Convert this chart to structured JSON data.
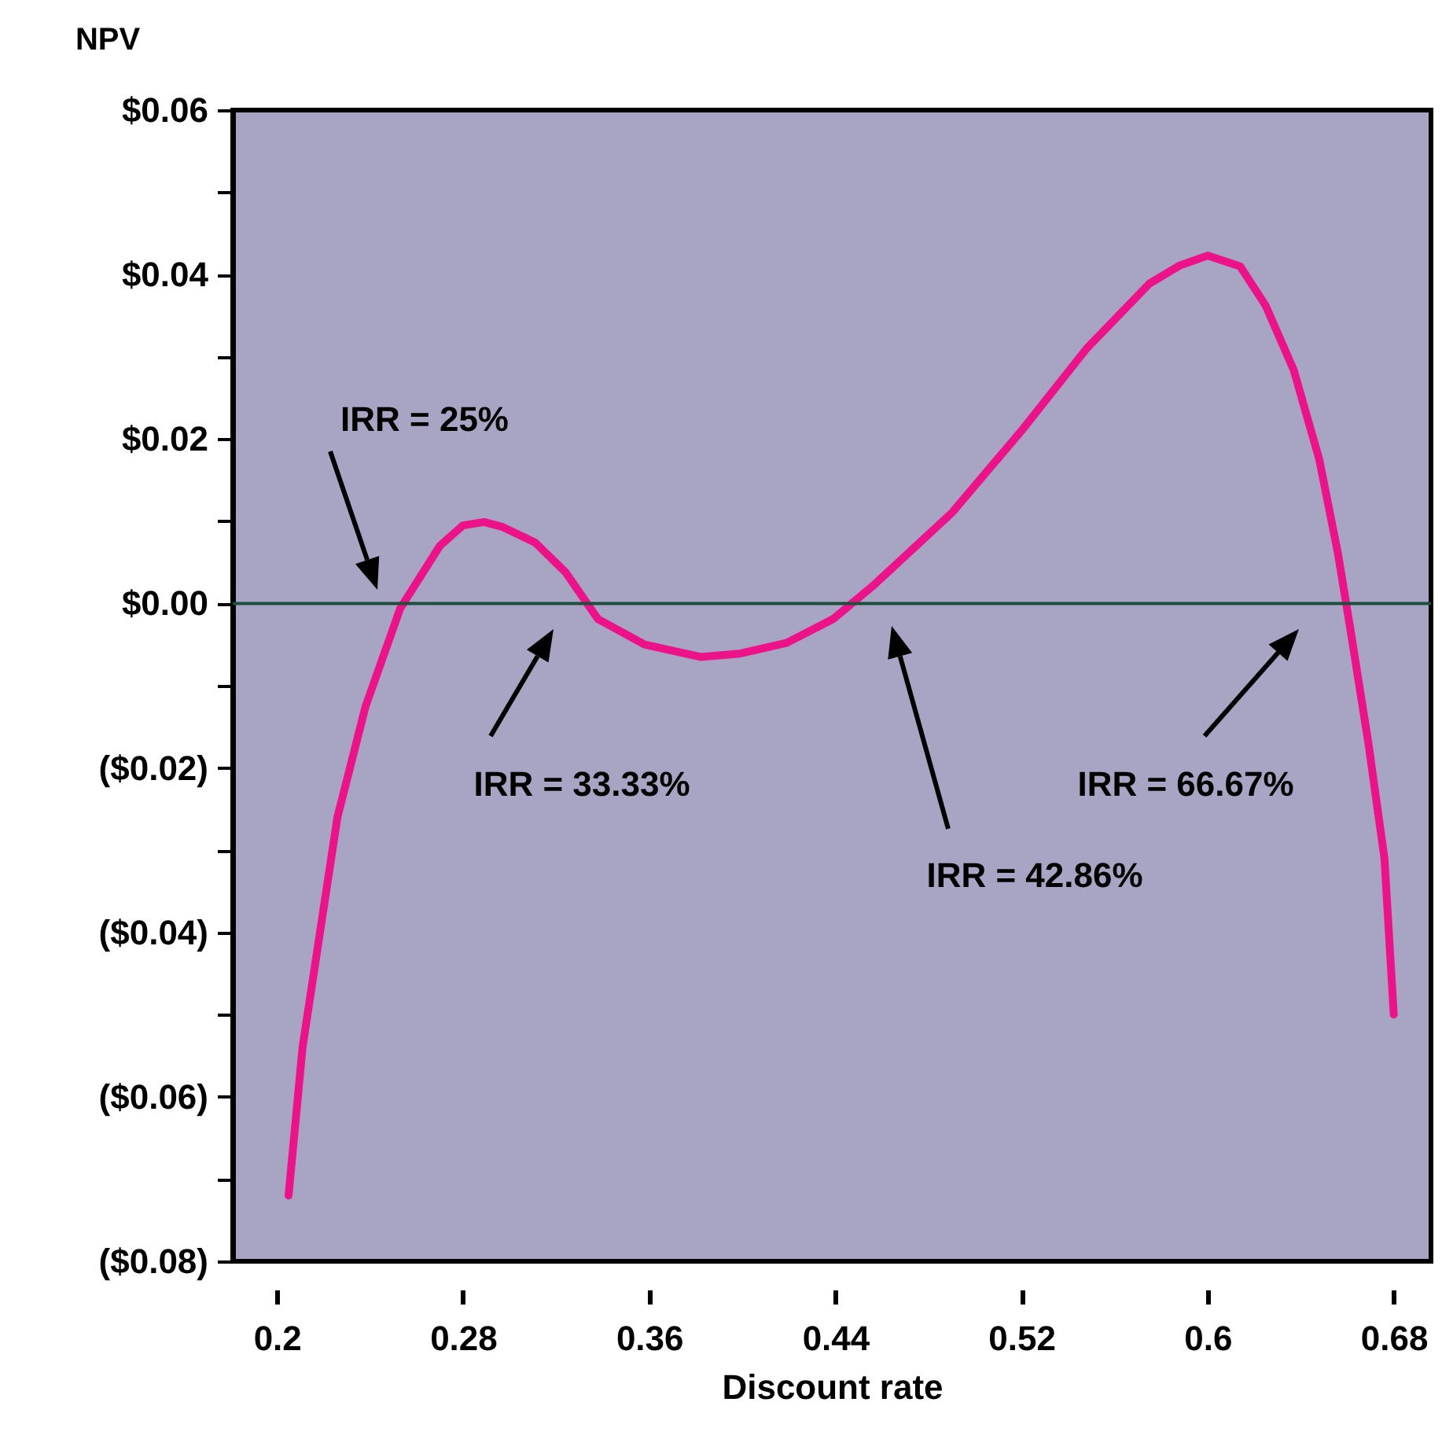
{
  "chart_data": {
    "type": "line",
    "xlabel": "Discount rate",
    "ylabel": "NPV",
    "x": [
      0.205,
      0.211,
      0.226,
      0.238,
      0.253,
      0.27,
      0.28,
      0.289,
      0.297,
      0.311,
      0.324,
      0.338,
      0.358,
      0.382,
      0.399,
      0.419,
      0.439,
      0.456,
      0.49,
      0.52,
      0.548,
      0.575,
      0.588,
      0.6,
      0.614,
      0.625,
      0.637,
      0.648,
      0.656,
      0.661,
      0.669,
      0.676,
      0.68
    ],
    "series": [
      {
        "color": "#ee1289",
        "values": [
          -0.072,
          -0.054,
          -0.026,
          -0.0126,
          -0.0006,
          0.007,
          0.0095,
          0.0099,
          0.0093,
          0.0074,
          0.0038,
          -0.0019,
          -0.005,
          -0.0065,
          -0.0061,
          -0.0048,
          -0.0019,
          0.0021,
          0.011,
          0.021,
          0.031,
          0.0389,
          0.0411,
          0.0423,
          0.041,
          0.0362,
          0.0284,
          0.0175,
          0.0061,
          -0.0025,
          -0.0168,
          -0.031,
          -0.05
        ]
      }
    ],
    "xlim": [
      0.181,
      0.696
    ],
    "ylim": [
      -0.08,
      0.06
    ],
    "xticks": [
      0.2,
      0.28,
      0.36,
      0.44,
      0.52,
      0.6,
      0.68
    ],
    "yticks": [
      {
        "value": -0.08,
        "label": "($0.08)"
      },
      {
        "value": -0.07,
        "label": null
      },
      {
        "value": -0.06,
        "label": "($0.06)"
      },
      {
        "value": -0.05,
        "label": null
      },
      {
        "value": -0.04,
        "label": "($0.04)"
      },
      {
        "value": -0.03,
        "label": null
      },
      {
        "value": -0.02,
        "label": "($0.02)"
      },
      {
        "value": -0.01,
        "label": null
      },
      {
        "value": 0,
        "label": "$0.00"
      },
      {
        "value": 0.01,
        "label": null
      },
      {
        "value": 0.02,
        "label": "$0.02"
      },
      {
        "value": 0.03,
        "label": null
      },
      {
        "value": 0.04,
        "label": "$0.04"
      },
      {
        "value": 0.05,
        "label": null
      },
      {
        "value": 0.06,
        "label": "$0.06"
      }
    ],
    "ref_lines": [
      {
        "axis": "y",
        "value": 0,
        "color": "#1f4e3d"
      }
    ],
    "annotations": [
      "IRR = 25%",
      "IRR = 33.33%",
      "IRR = 42.86%",
      "IRR = 66.67%"
    ],
    "grid": false,
    "marker": "none",
    "line_style": "solid"
  }
}
